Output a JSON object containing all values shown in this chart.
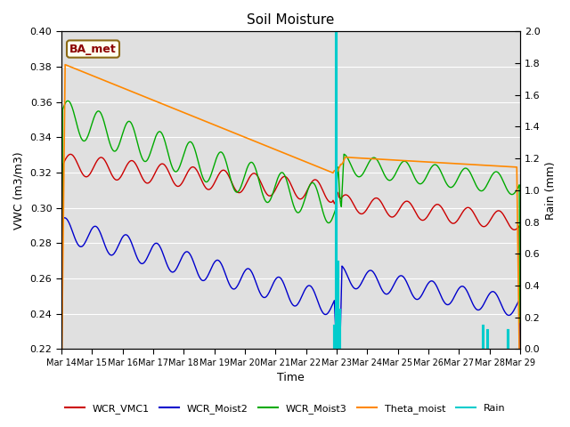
{
  "title": "Soil Moisture",
  "xlabel": "Time",
  "ylabel_left": "VWC (m3/m3)",
  "ylabel_right": "Rain (mm)",
  "ylim_left": [
    0.22,
    0.4
  ],
  "ylim_right": [
    0.0,
    2.0
  ],
  "annotation_text": "BA_met",
  "annotation_bg": "#fffff0",
  "annotation_border": "#8b6914",
  "annotation_text_color": "#8b0000",
  "line_colors": {
    "WCR_VMC1": "#cc0000",
    "WCR_Moist2": "#0000cc",
    "WCR_Moist3": "#00aa00",
    "Theta_moist": "#ff8800",
    "Rain": "#00cccc"
  },
  "xtick_labels": [
    "Mar 14",
    "Mar 15",
    "Mar 16",
    "Mar 17",
    "Mar 18",
    "Mar 19",
    "Mar 20",
    "Mar 21",
    "Mar 22",
    "Mar 23",
    "Mar 24",
    "Mar 25",
    "Mar 26",
    "Mar 27",
    "Mar 28",
    "Mar 29"
  ],
  "bg_color": "#e0e0e0",
  "fig_bg": "#ffffff",
  "left_yticks": [
    0.22,
    0.24,
    0.26,
    0.28,
    0.3,
    0.32,
    0.34,
    0.36,
    0.38,
    0.4
  ],
  "right_yticks": [
    0.0,
    0.2,
    0.4,
    0.6,
    0.8,
    1.0,
    1.2,
    1.4,
    1.6,
    1.8,
    2.0
  ]
}
